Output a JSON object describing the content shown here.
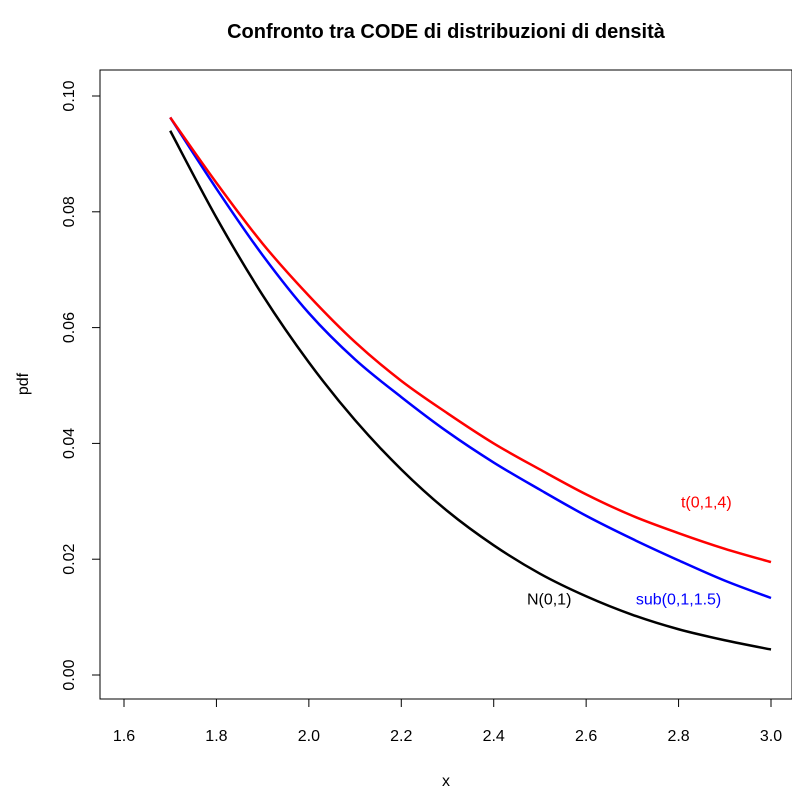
{
  "chart_data": {
    "type": "line",
    "title": "Confronto tra CODE di distribuzioni di densità",
    "xlabel": "x",
    "ylabel": "pdf",
    "xlim": [
      1.6,
      3.0
    ],
    "ylim": [
      0.0,
      0.1
    ],
    "xticks": [
      "1.6",
      "1.8",
      "2.0",
      "2.2",
      "2.4",
      "2.6",
      "2.8",
      "3.0"
    ],
    "yticks": [
      "0.00",
      "0.02",
      "0.04",
      "0.06",
      "0.08",
      "0.10"
    ],
    "grid": false,
    "x": [
      1.7,
      1.8,
      1.9,
      2.0,
      2.1,
      2.2,
      2.3,
      2.4,
      2.5,
      2.6,
      2.7,
      2.8,
      2.9,
      3.0
    ],
    "series": [
      {
        "name": "N(0,1)",
        "color": "#000000",
        "values": [
          0.094,
          0.079,
          0.0656,
          0.054,
          0.044,
          0.0355,
          0.0283,
          0.0224,
          0.0175,
          0.0136,
          0.0104,
          0.0079,
          0.006,
          0.0044
        ]
      },
      {
        "name": "sub(0,1,1.5)",
        "color": "#0000ff",
        "values": [
          0.0963,
          0.084,
          0.0725,
          0.0625,
          0.0545,
          0.048,
          0.042,
          0.0367,
          0.032,
          0.0275,
          0.0235,
          0.0198,
          0.0163,
          0.0133
        ]
      },
      {
        "name": "t(0,1,4)",
        "color": "#ff0000",
        "values": [
          0.0963,
          0.085,
          0.0745,
          0.0655,
          0.0575,
          0.0508,
          0.0452,
          0.04,
          0.0355,
          0.0312,
          0.0275,
          0.0245,
          0.0218,
          0.0195
        ]
      }
    ],
    "annotations": [
      {
        "text": "t(0,1,4)",
        "x": 2.86,
        "y": 0.03,
        "color": "#ff0000"
      },
      {
        "text": "sub(0,1,1.5)",
        "x": 2.8,
        "y": 0.0132,
        "color": "#0000ff"
      },
      {
        "text": "N(0,1)",
        "x": 2.52,
        "y": 0.0132,
        "color": "#000000"
      }
    ]
  }
}
